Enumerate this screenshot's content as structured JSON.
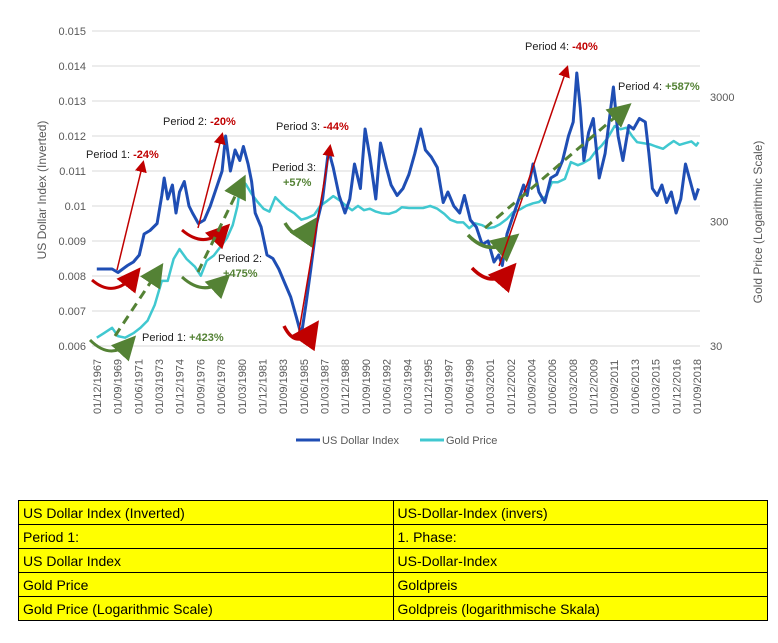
{
  "chart_data": {
    "type": "line",
    "ylabel_left": "US Dollar Index (Inverted)",
    "ylabel_right": "Gold Price (Logarithmic Scale)",
    "ylim_left": [
      0.006,
      0.015
    ],
    "yticks_left": [
      "0.006",
      "0.007",
      "0.008",
      "0.009",
      "0.01",
      "0.011",
      "0.012",
      "0.013",
      "0.014",
      "0.015"
    ],
    "ylim_right": [
      30,
      3000
    ],
    "yticks_right": [
      "30",
      "300",
      "3000"
    ],
    "xticks": [
      "01/12/1967",
      "01/09/1969",
      "01/06/1971",
      "01/03/1973",
      "01/12/1974",
      "01/09/1976",
      "01/06/1978",
      "01/03/1980",
      "01/12/1981",
      "01/09/1983",
      "01/06/1985",
      "01/03/1987",
      "01/12/1988",
      "01/09/1990",
      "01/06/1992",
      "01/03/1994",
      "01/12/1995",
      "01/09/1997",
      "01/06/1999",
      "01/03/2001",
      "01/12/2002",
      "01/09/2004",
      "01/06/2006",
      "01/03/2008",
      "01/12/2009",
      "01/09/2011",
      "01/06/2013",
      "01/03/2015",
      "01/12/2016",
      "01/09/2018"
    ],
    "grid": true,
    "legend_position": "bottom",
    "colors": {
      "dollar": "#1f4eb4",
      "gold": "#40c8d0",
      "red": "#c00000",
      "green": "#548235"
    },
    "series": [
      {
        "name": "US Dollar Index",
        "axis": "left",
        "x": [
          1967.9,
          1968.5,
          1969.2,
          1969.7,
          1970.5,
          1971.0,
          1971.5,
          1971.9,
          1972.4,
          1973.0,
          1973.4,
          1973.6,
          1973.9,
          1974.3,
          1974.6,
          1974.9,
          1975.3,
          1975.7,
          1976.0,
          1976.5,
          1977.0,
          1977.5,
          1978.0,
          1978.5,
          1978.8,
          1979.2,
          1979.6,
          1980.0,
          1980.3,
          1980.7,
          1981.0,
          1981.3,
          1981.8,
          1982.3,
          1982.8,
          1983.3,
          1983.8,
          1984.3,
          1984.8,
          1985.2,
          1985.6,
          1986.0,
          1986.5,
          1987.0,
          1987.5,
          1987.9,
          1988.4,
          1988.9,
          1989.3,
          1989.7,
          1990.2,
          1990.6,
          1991.0,
          1991.5,
          1991.9,
          1992.4,
          1992.8,
          1993.3,
          1993.8,
          1994.3,
          1994.8,
          1995.3,
          1995.7,
          1996.2,
          1996.7,
          1997.2,
          1997.6,
          1998.1,
          1998.6,
          1999.0,
          1999.5,
          2000.0,
          2000.5,
          2001.0,
          2001.5,
          2001.9,
          2002.2,
          2002.6,
          2003.0,
          2003.5,
          2004.0,
          2004.3,
          2004.8,
          2005.3,
          2005.8,
          2006.3,
          2006.8,
          2007.3,
          2007.8,
          2008.2,
          2008.5,
          2008.8,
          2009.1,
          2009.5,
          2009.9,
          2010.4,
          2010.9,
          2011.3,
          2011.6,
          2012.0,
          2012.4,
          2012.9,
          2013.3,
          2013.8,
          2014.3,
          2014.6,
          2014.9,
          2015.3,
          2015.7,
          2016.1,
          2016.5,
          2016.9,
          2017.3,
          2017.7,
          2018.1,
          2018.5,
          2018.8
        ],
        "values": [
          0.0082,
          0.0082,
          0.0082,
          0.0081,
          0.0083,
          0.0084,
          0.0086,
          0.0092,
          0.0093,
          0.0095,
          0.0103,
          0.0108,
          0.0102,
          0.0106,
          0.0098,
          0.0104,
          0.0107,
          0.01,
          0.0098,
          0.0095,
          0.0096,
          0.01,
          0.0105,
          0.011,
          0.012,
          0.011,
          0.0116,
          0.0113,
          0.0117,
          0.0112,
          0.0107,
          0.0098,
          0.0094,
          0.0086,
          0.0085,
          0.0082,
          0.0078,
          0.0074,
          0.0068,
          0.0063,
          0.0072,
          0.0082,
          0.0095,
          0.0102,
          0.0116,
          0.0111,
          0.0103,
          0.0098,
          0.0102,
          0.0112,
          0.0105,
          0.0122,
          0.0114,
          0.0102,
          0.0118,
          0.0111,
          0.0106,
          0.0103,
          0.0105,
          0.0109,
          0.0115,
          0.0122,
          0.0116,
          0.0114,
          0.0111,
          0.0101,
          0.0104,
          0.01,
          0.0098,
          0.0103,
          0.0096,
          0.0094,
          0.0089,
          0.009,
          0.0084,
          0.0086,
          0.0083,
          0.0092,
          0.0096,
          0.0101,
          0.0106,
          0.0103,
          0.0112,
          0.0104,
          0.0101,
          0.0108,
          0.0109,
          0.0113,
          0.012,
          0.0124,
          0.0138,
          0.0128,
          0.0113,
          0.0121,
          0.0125,
          0.0108,
          0.0115,
          0.0126,
          0.0134,
          0.012,
          0.0113,
          0.0123,
          0.0122,
          0.0125,
          0.0124,
          0.0115,
          0.0105,
          0.0103,
          0.0106,
          0.0101,
          0.0104,
          0.0098,
          0.0102,
          0.0112,
          0.0107,
          0.0102,
          0.0105
        ]
      },
      {
        "name": "Gold Price",
        "axis": "right",
        "x": [
          1967.9,
          1968.5,
          1969.2,
          1969.7,
          1970.3,
          1971.0,
          1971.6,
          1972.2,
          1972.8,
          1973.4,
          1973.9,
          1974.4,
          1974.9,
          1975.5,
          1976.2,
          1976.7,
          1977.2,
          1977.8,
          1978.4,
          1978.9,
          1979.4,
          1979.8,
          1980.1,
          1980.5,
          1981.0,
          1981.5,
          1982.0,
          1982.5,
          1983.0,
          1983.5,
          1984.0,
          1984.6,
          1985.2,
          1985.7,
          1986.3,
          1986.8,
          1987.4,
          1987.9,
          1988.5,
          1989.0,
          1989.5,
          1990.0,
          1990.5,
          1991.0,
          1991.5,
          1992.0,
          1992.6,
          1993.2,
          1993.7,
          1994.3,
          1994.9,
          1995.5,
          1996.1,
          1996.7,
          1997.3,
          1997.8,
          1998.4,
          1998.9,
          1999.4,
          1999.9,
          2000.5,
          2001.0,
          2001.5,
          2002.0,
          2002.6,
          2003.1,
          2003.7,
          2004.2,
          2004.8,
          2005.3,
          2005.9,
          2006.4,
          2006.9,
          2007.5,
          2008.0,
          2008.6,
          2009.0,
          2009.6,
          2010.1,
          2010.6,
          2011.1,
          2011.7,
          2012.2,
          2012.7,
          2013.2,
          2013.6,
          2014.1,
          2014.7,
          2015.2,
          2015.8,
          2016.3,
          2016.7,
          2017.2,
          2017.7,
          2018.2,
          2018.6,
          2018.8
        ],
        "values": [
          35,
          38,
          42,
          36,
          35,
          38,
          42,
          48,
          64,
          100,
          100,
          150,
          180,
          150,
          130,
          110,
          145,
          160,
          190,
          220,
          280,
          400,
          650,
          600,
          500,
          430,
          380,
          360,
          470,
          420,
          380,
          350,
          310,
          320,
          340,
          400,
          440,
          480,
          440,
          400,
          370,
          400,
          370,
          380,
          360,
          350,
          345,
          360,
          390,
          385,
          385,
          385,
          400,
          380,
          345,
          310,
          295,
          295,
          265,
          290,
          280,
          265,
          270,
          285,
          315,
          355,
          375,
          400,
          420,
          430,
          480,
          620,
          620,
          660,
          900,
          850,
          880,
          950,
          1100,
          1220,
          1400,
          1750,
          1650,
          1700,
          1450,
          1300,
          1280,
          1250,
          1200,
          1150,
          1250,
          1330,
          1240,
          1280,
          1320,
          1220,
          1300
        ]
      }
    ],
    "annotations": {
      "p1_dollar": {
        "label": "Period 1:",
        "value": "-24%"
      },
      "p2_dollar": {
        "label": "Period 2:",
        "value": "-20%"
      },
      "p3_dollar": {
        "label": "Period 3:",
        "value": "-44%"
      },
      "p4_dollar": {
        "label": "Period 4:",
        "value": "-40%"
      },
      "p1_gold": {
        "label": "Period 1:",
        "value": "+423%"
      },
      "p2_gold": {
        "label": "Period 2:",
        "value": "+475%"
      },
      "p3_gold": {
        "label": "Period 3:",
        "value": "+57%"
      },
      "p4_gold": {
        "label": "Period 4:",
        "value": "+587%"
      }
    }
  },
  "translation_table": [
    [
      "US Dollar Index (Inverted)",
      "US-Dollar-Index (invers)"
    ],
    [
      "Period 1:",
      "1. Phase:"
    ],
    [
      "US Dollar Index",
      "US-Dollar-Index"
    ],
    [
      "Gold Price",
      "Goldpreis"
    ],
    [
      "Gold Price (Logarithmic Scale)",
      "Goldpreis (logarithmische Skala)"
    ]
  ]
}
